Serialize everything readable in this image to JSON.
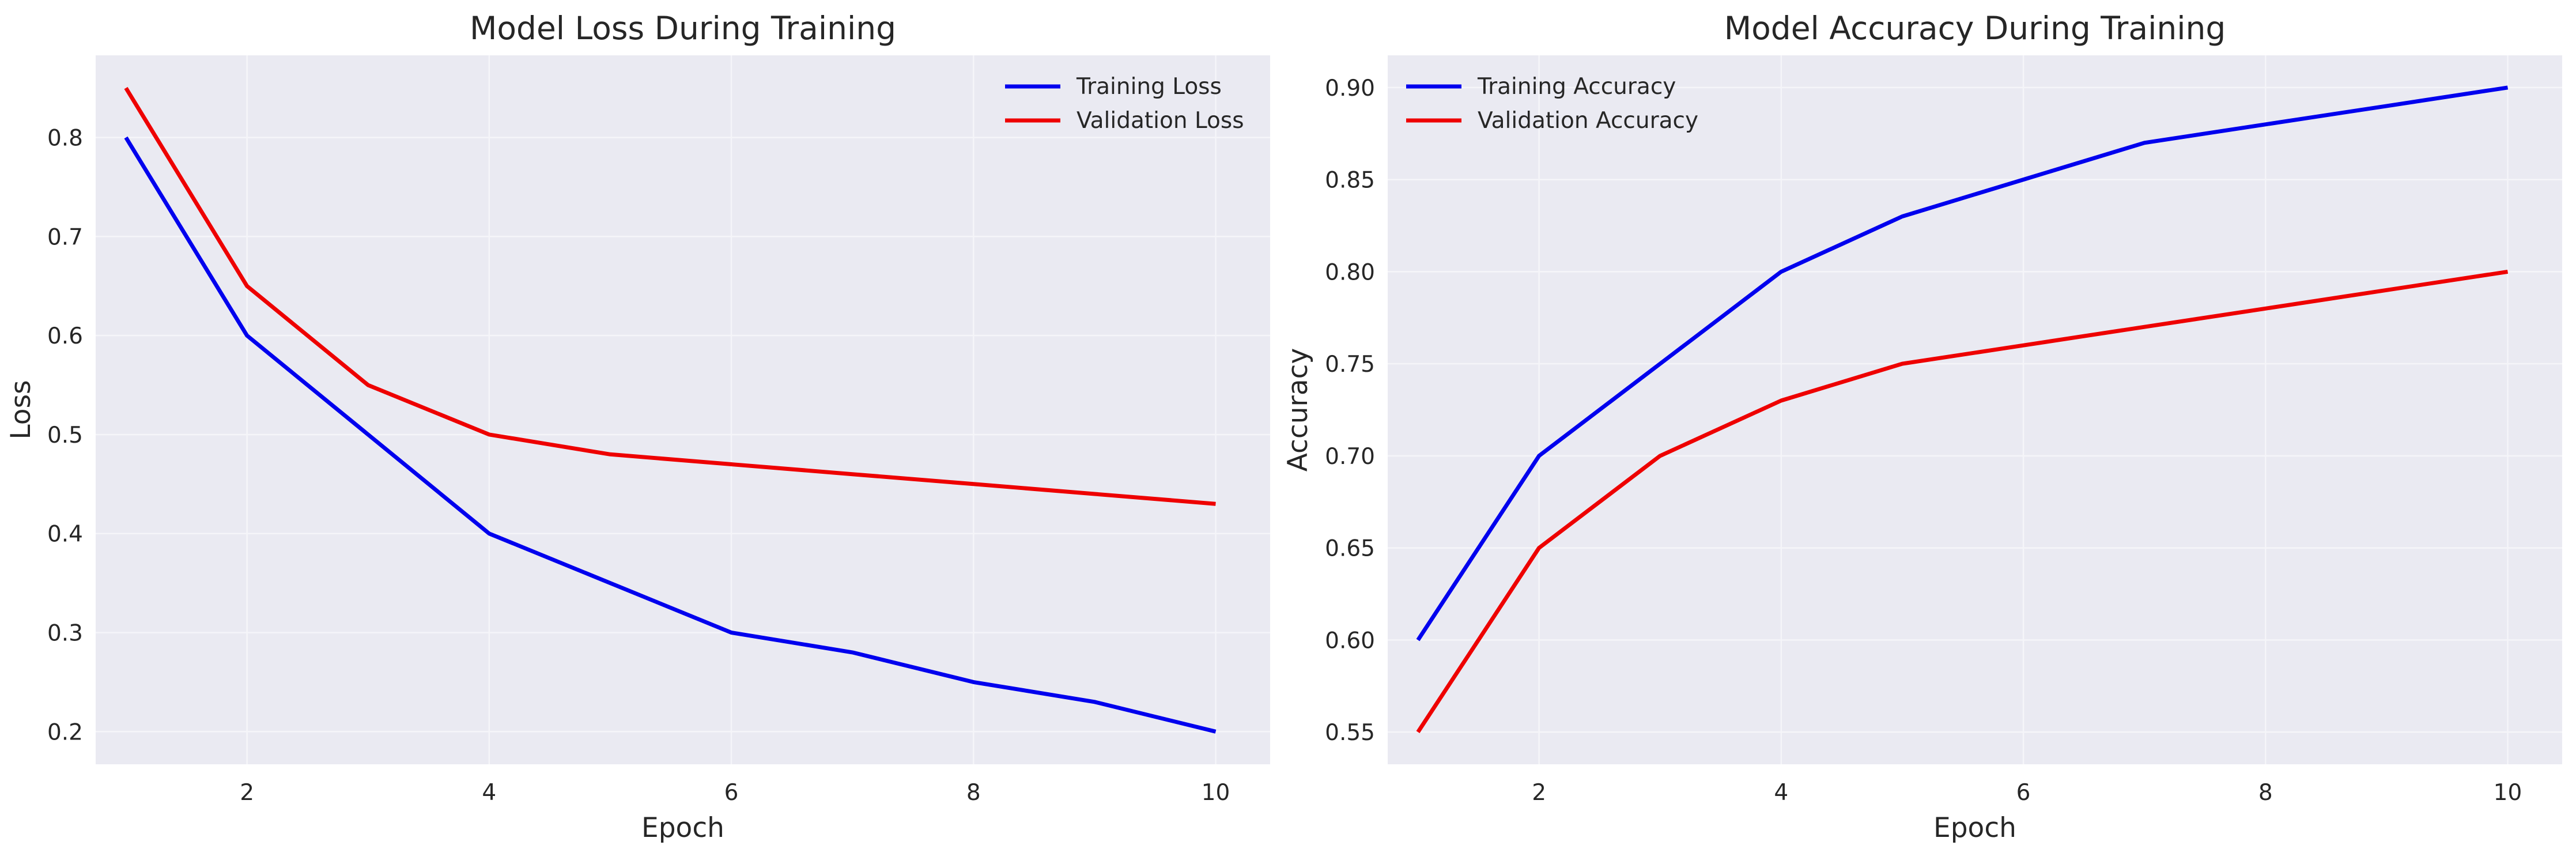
{
  "chart_data": [
    {
      "type": "line",
      "title": "Model Loss During Training",
      "xlabel": "Epoch",
      "ylabel": "Loss",
      "x": [
        1,
        2,
        3,
        4,
        5,
        6,
        7,
        8,
        9,
        10
      ],
      "xlim": [
        0.75,
        10.45
      ],
      "ylim": [
        0.167,
        0.883
      ],
      "xticks": [
        2,
        4,
        6,
        8,
        10
      ],
      "yticks": [
        0.2,
        0.3,
        0.4,
        0.5,
        0.6,
        0.7,
        0.8
      ],
      "xtick_labels": [
        "2",
        "4",
        "6",
        "8",
        "10"
      ],
      "ytick_labels": [
        "0.2",
        "0.3",
        "0.4",
        "0.5",
        "0.6",
        "0.7",
        "0.8"
      ],
      "grid": true,
      "legend": "upper right",
      "series": [
        {
          "name": "Training Loss",
          "color": "#0000ee",
          "values": [
            0.8,
            0.6,
            0.5,
            0.4,
            0.35,
            0.3,
            0.28,
            0.25,
            0.23,
            0.2
          ]
        },
        {
          "name": "Validation Loss",
          "color": "#ee0000",
          "values": [
            0.85,
            0.65,
            0.55,
            0.5,
            0.48,
            0.47,
            0.46,
            0.45,
            0.44,
            0.43
          ]
        }
      ]
    },
    {
      "type": "line",
      "title": "Model Accuracy During Training",
      "xlabel": "Epoch",
      "ylabel": "Accuracy",
      "x": [
        1,
        2,
        3,
        4,
        5,
        6,
        7,
        8,
        9,
        10
      ],
      "xlim": [
        0.75,
        10.45
      ],
      "ylim": [
        0.5325,
        0.9175
      ],
      "xticks": [
        2,
        4,
        6,
        8,
        10
      ],
      "yticks": [
        0.55,
        0.6,
        0.65,
        0.7,
        0.75,
        0.8,
        0.85,
        0.9
      ],
      "xtick_labels": [
        "2",
        "4",
        "6",
        "8",
        "10"
      ],
      "ytick_labels": [
        "0.55",
        "0.60",
        "0.65",
        "0.70",
        "0.75",
        "0.80",
        "0.85",
        "0.90"
      ],
      "grid": true,
      "legend": "upper left",
      "series": [
        {
          "name": "Training Accuracy",
          "color": "#0000ee",
          "values": [
            0.6,
            0.7,
            0.75,
            0.8,
            0.83,
            0.85,
            0.87,
            0.88,
            0.89,
            0.9
          ]
        },
        {
          "name": "Validation Accuracy",
          "color": "#ee0000",
          "values": [
            0.55,
            0.65,
            0.7,
            0.73,
            0.75,
            0.76,
            0.77,
            0.78,
            0.79,
            0.8
          ]
        }
      ]
    }
  ]
}
